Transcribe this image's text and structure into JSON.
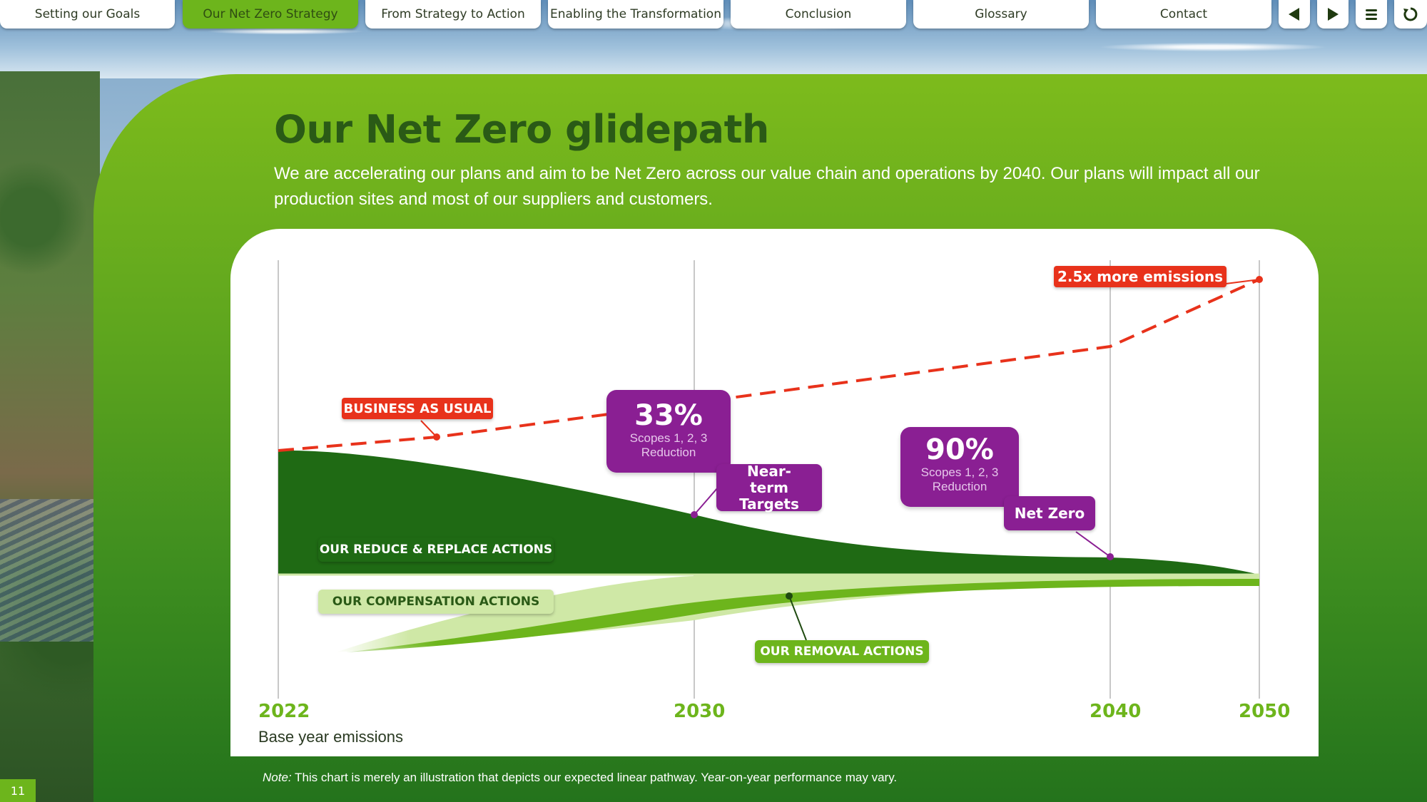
{
  "nav": {
    "tabs": [
      {
        "label": "Setting our Goals",
        "active": false
      },
      {
        "label": "Our Net Zero Strategy",
        "active": true
      },
      {
        "label": "From Strategy to Action",
        "active": false
      },
      {
        "label": "Enabling the Transformation",
        "active": false
      },
      {
        "label": "Conclusion",
        "active": false
      },
      {
        "label": "Glossary",
        "active": false
      },
      {
        "label": "Contact",
        "active": false
      }
    ],
    "buttons": [
      "previous-icon",
      "next-icon",
      "menu-icon",
      "refresh-icon"
    ]
  },
  "page": {
    "title": "Our Net Zero glidepath",
    "subtitle": "We are accelerating our plans and aim to be Net Zero across our value chain and operations by 2040. Our plans will impact all our production sites and most of our suppliers and customers.",
    "base_label": "Base year emissions",
    "note_prefix": "Note:",
    "note_text": " This chart is merely an illustration that depicts our expected linear pathway. Year-on-year performance may vary.",
    "page_number": "11"
  },
  "chart_data": {
    "type": "area",
    "x_ticks": [
      "2022",
      "2030",
      "2040",
      "2050"
    ],
    "labels": {
      "bau": "BUSINESS AS USUAL",
      "bau_end": "2.5x more emissions",
      "reduce": "OUR REDUCE & REPLACE ACTIONS",
      "compensation": "OUR COMPENSATION ACTIONS",
      "removal": "OUR REMOVAL ACTIONS",
      "near_term": "Near-term Targets",
      "net_zero": "Net Zero"
    },
    "callouts": [
      {
        "value": "33%",
        "text_line1": "Scopes 1, 2, 3",
        "text_line2": "Reduction"
      },
      {
        "value": "90%",
        "text_line1": "Scopes 1, 2, 3",
        "text_line2": "Reduction"
      }
    ],
    "colors": {
      "bau": "#e8321b",
      "reduce": "#1f6a14",
      "compensation": "#cfe8a6",
      "removal": "#6db51c",
      "target": "#8a1f93",
      "year": "#6db51c"
    }
  }
}
